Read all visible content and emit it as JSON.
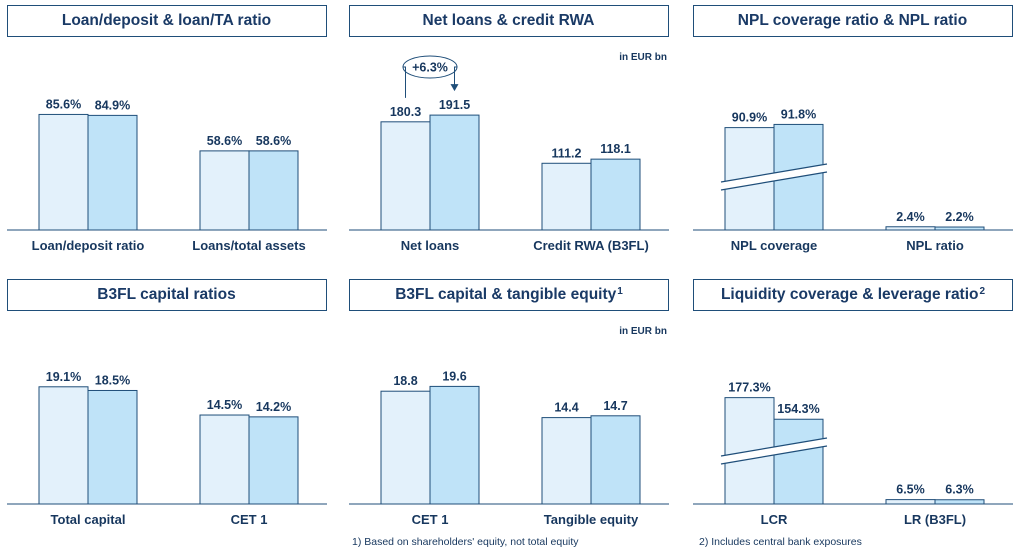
{
  "chart_data": [
    {
      "id": "p1",
      "type": "bar",
      "title": "Loan/deposit & loan/TA ratio",
      "title_sup": "",
      "unit": "",
      "categories": [
        "Loan/deposit ratio",
        "Loans/total assets"
      ],
      "values": [
        [
          85.6,
          84.9
        ],
        [
          58.6,
          58.6
        ]
      ],
      "labels": [
        [
          "85.6%",
          "84.9%"
        ],
        [
          "58.6%",
          "58.6%"
        ]
      ],
      "ylim": [
        0,
        100
      ],
      "axis_break": false,
      "growth_label": ""
    },
    {
      "id": "p2",
      "type": "bar",
      "title": "Net loans & credit RWA",
      "title_sup": "",
      "unit": "in EUR bn",
      "categories": [
        "Net loans",
        "Credit RWA (B3FL)"
      ],
      "values": [
        [
          180.3,
          191.5
        ],
        [
          111.2,
          118.1
        ]
      ],
      "labels": [
        [
          "180.3",
          "191.5"
        ],
        [
          "111.2",
          "118.1"
        ]
      ],
      "ylim": [
        0,
        225
      ],
      "axis_break": false,
      "growth_label": "+6.3%"
    },
    {
      "id": "p3",
      "type": "bar",
      "title": "NPL coverage ratio & NPL ratio",
      "title_sup": "",
      "unit": "",
      "categories": [
        "NPL coverage",
        "NPL ratio"
      ],
      "values": [
        [
          90.9,
          91.8
        ],
        [
          2.4,
          2.2
        ]
      ],
      "labels": [
        [
          "90.9%",
          "91.8%"
        ],
        [
          "2.4%",
          "2.2%"
        ]
      ],
      "ylim": [
        0,
        100
      ],
      "axis_break": true,
      "growth_label": ""
    },
    {
      "id": "p4",
      "type": "bar",
      "title": "B3FL capital ratios",
      "title_sup": "",
      "unit": "",
      "categories": [
        "Total capital",
        "CET 1"
      ],
      "values": [
        [
          19.1,
          18.5
        ],
        [
          14.5,
          14.2
        ]
      ],
      "labels": [
        [
          "19.1%",
          "18.5%"
        ],
        [
          "14.5%",
          "14.2%"
        ]
      ],
      "ylim": [
        0,
        22
      ],
      "axis_break": false,
      "growth_label": ""
    },
    {
      "id": "p5",
      "type": "bar",
      "title": "B3FL capital & tangible equity",
      "title_sup": "1",
      "unit": "in EUR bn",
      "categories": [
        "CET 1",
        "Tangible equity"
      ],
      "values": [
        [
          18.8,
          19.6
        ],
        [
          14.4,
          14.7
        ]
      ],
      "labels": [
        [
          "18.8",
          "19.6"
        ],
        [
          "14.4",
          "14.7"
        ]
      ],
      "ylim": [
        0,
        22.5
      ],
      "axis_break": false,
      "growth_label": ""
    },
    {
      "id": "p6",
      "type": "bar",
      "title": "Liquidity coverage & leverage ratio",
      "title_sup": "2",
      "unit": "",
      "categories": [
        "LCR",
        "LR (B3FL)"
      ],
      "values": [
        [
          177.3,
          154.3
        ],
        [
          6.5,
          6.3
        ]
      ],
      "labels": [
        [
          "177.3%",
          "154.3%"
        ],
        [
          "6.5%",
          "6.3%"
        ]
      ],
      "ylim": [
        0,
        200
      ],
      "axis_break": true,
      "growth_label": ""
    }
  ],
  "footnotes": {
    "f1": "1) Based on shareholders' equity, not total equity",
    "f2": "2) Includes central bank exposures"
  },
  "colors": {
    "bar_prior": "#e3f1fb",
    "bar_current": "#bfe3f8",
    "bar_stroke": "#1f4e79",
    "text": "#17375e"
  }
}
